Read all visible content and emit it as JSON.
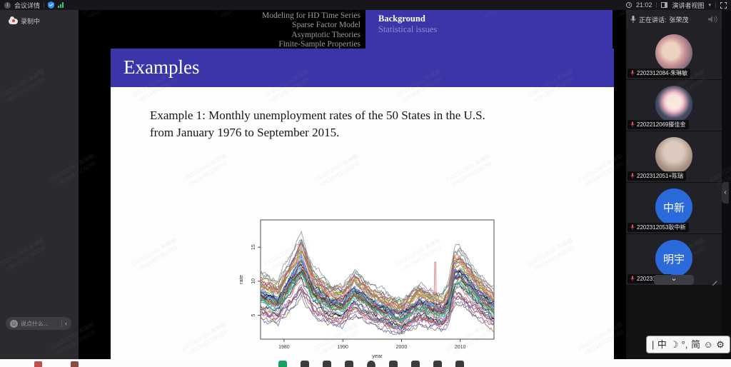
{
  "topbar": {
    "meeting_details": "会议详情",
    "time": "21:02",
    "view_mode": "演讲者视图",
    "dropdown_caret": "▾"
  },
  "left_panel": {
    "recording_label": "录制中",
    "chat_placeholder": "说点什么...",
    "chat_collapse": "‹",
    "emoji_icon_glyph": "☺"
  },
  "slide": {
    "header_left_lines": [
      "Modeling for HD Time Series",
      "Sparse Factor Model",
      "Asymptotic Theories",
      "Finite-Sample Properties"
    ],
    "header_right_title": "Background",
    "header_right_sub": "Statistical issues",
    "title": "Examples",
    "body_line1": "Example 1: Monthly unemployment rates of the 50 States in the U.S.",
    "body_line2": "from January 1976 to September 2015."
  },
  "watermark": {
    "line1": "2202312084-朱琳敏",
    "line2": "+8618451356059"
  },
  "sidebar": {
    "speaking_prefix": "正在讲话:",
    "speaker_name": "张荣茂",
    "collapse_chevron": "⌄",
    "edge_tab_arrow": "‹",
    "participants": [
      {
        "label": "2202312084-朱琳敏",
        "avatar": "photo1",
        "avatar_text": ""
      },
      {
        "label": "2202212069滕佳金",
        "avatar": "photo2",
        "avatar_text": ""
      },
      {
        "label": "2202312051+陈瑞",
        "avatar": "photo3",
        "avatar_text": ""
      },
      {
        "label": "2202312053耿中新",
        "avatar": "text",
        "avatar_text": "中新",
        "avatar_color": "#2a6adb"
      },
      {
        "label": "2202312048",
        "avatar": "text",
        "avatar_text": "明宇",
        "avatar_color": "#2a6adb"
      }
    ]
  },
  "ime": {
    "items": [
      "|",
      "中",
      "☽",
      "°,",
      "简",
      "☺",
      "⚙"
    ]
  },
  "bottom_toolbar": {
    "icons": [
      "camera-green",
      "mic",
      "participants",
      "screen-share",
      "record",
      "document",
      "timer",
      "security",
      "settings"
    ]
  },
  "chart_data": {
    "type": "line",
    "title": "",
    "xlabel": "year",
    "ylabel": "rate",
    "x_range": [
      1976,
      2015.75
    ],
    "ylim": [
      1.5,
      19
    ],
    "xticks": [
      1980,
      1990,
      2000,
      2010
    ],
    "yticks": [
      5,
      10,
      15
    ],
    "series_count": 50,
    "description": "Monthly unemployment rates of the 50 U.S. states, Jan 1976 - Sep 2015; common peaks near 1983 (max ~18%) and 2009-2010 (~8-14%), troughs near 2000 and 2007 (~3-5%), one red spike to ~13% near late 2005.",
    "mean_keypoints": [
      [
        1976,
        6.8
      ],
      [
        1979,
        5.8
      ],
      [
        1980,
        7.2
      ],
      [
        1983,
        10.8
      ],
      [
        1985,
        7.2
      ],
      [
        1988,
        5.6
      ],
      [
        1990,
        5.4
      ],
      [
        1992,
        7.2
      ],
      [
        1995,
        5.4
      ],
      [
        1998,
        4.4
      ],
      [
        2000,
        3.9
      ],
      [
        2003,
        5.6
      ],
      [
        2005,
        5.0
      ],
      [
        2007,
        4.4
      ],
      [
        2008,
        5.6
      ],
      [
        2009,
        9.2
      ],
      [
        2010,
        9.4
      ],
      [
        2012,
        7.6
      ],
      [
        2014,
        6.0
      ],
      [
        2015.75,
        5.0
      ]
    ],
    "spread": 2.0,
    "max_value": 18,
    "min_value": 2.2,
    "anomaly": {
      "x": 2005.7,
      "value": 12.8,
      "note": "single red vertical spike"
    },
    "palette": [
      "#000000",
      "#e0524d",
      "#4daf4a",
      "#3b6fd4",
      "#30c5c9",
      "#c45ec2",
      "#b0a23a",
      "#8a8a8a",
      "#d2742f",
      "#7b52ab",
      "#2e7d5b",
      "#a0522d",
      "#5560c8",
      "#9e2f2f",
      "#667c2e",
      "#708090",
      "#2f2f2f",
      "#cc6688",
      "#44aabb",
      "#886644"
    ]
  }
}
